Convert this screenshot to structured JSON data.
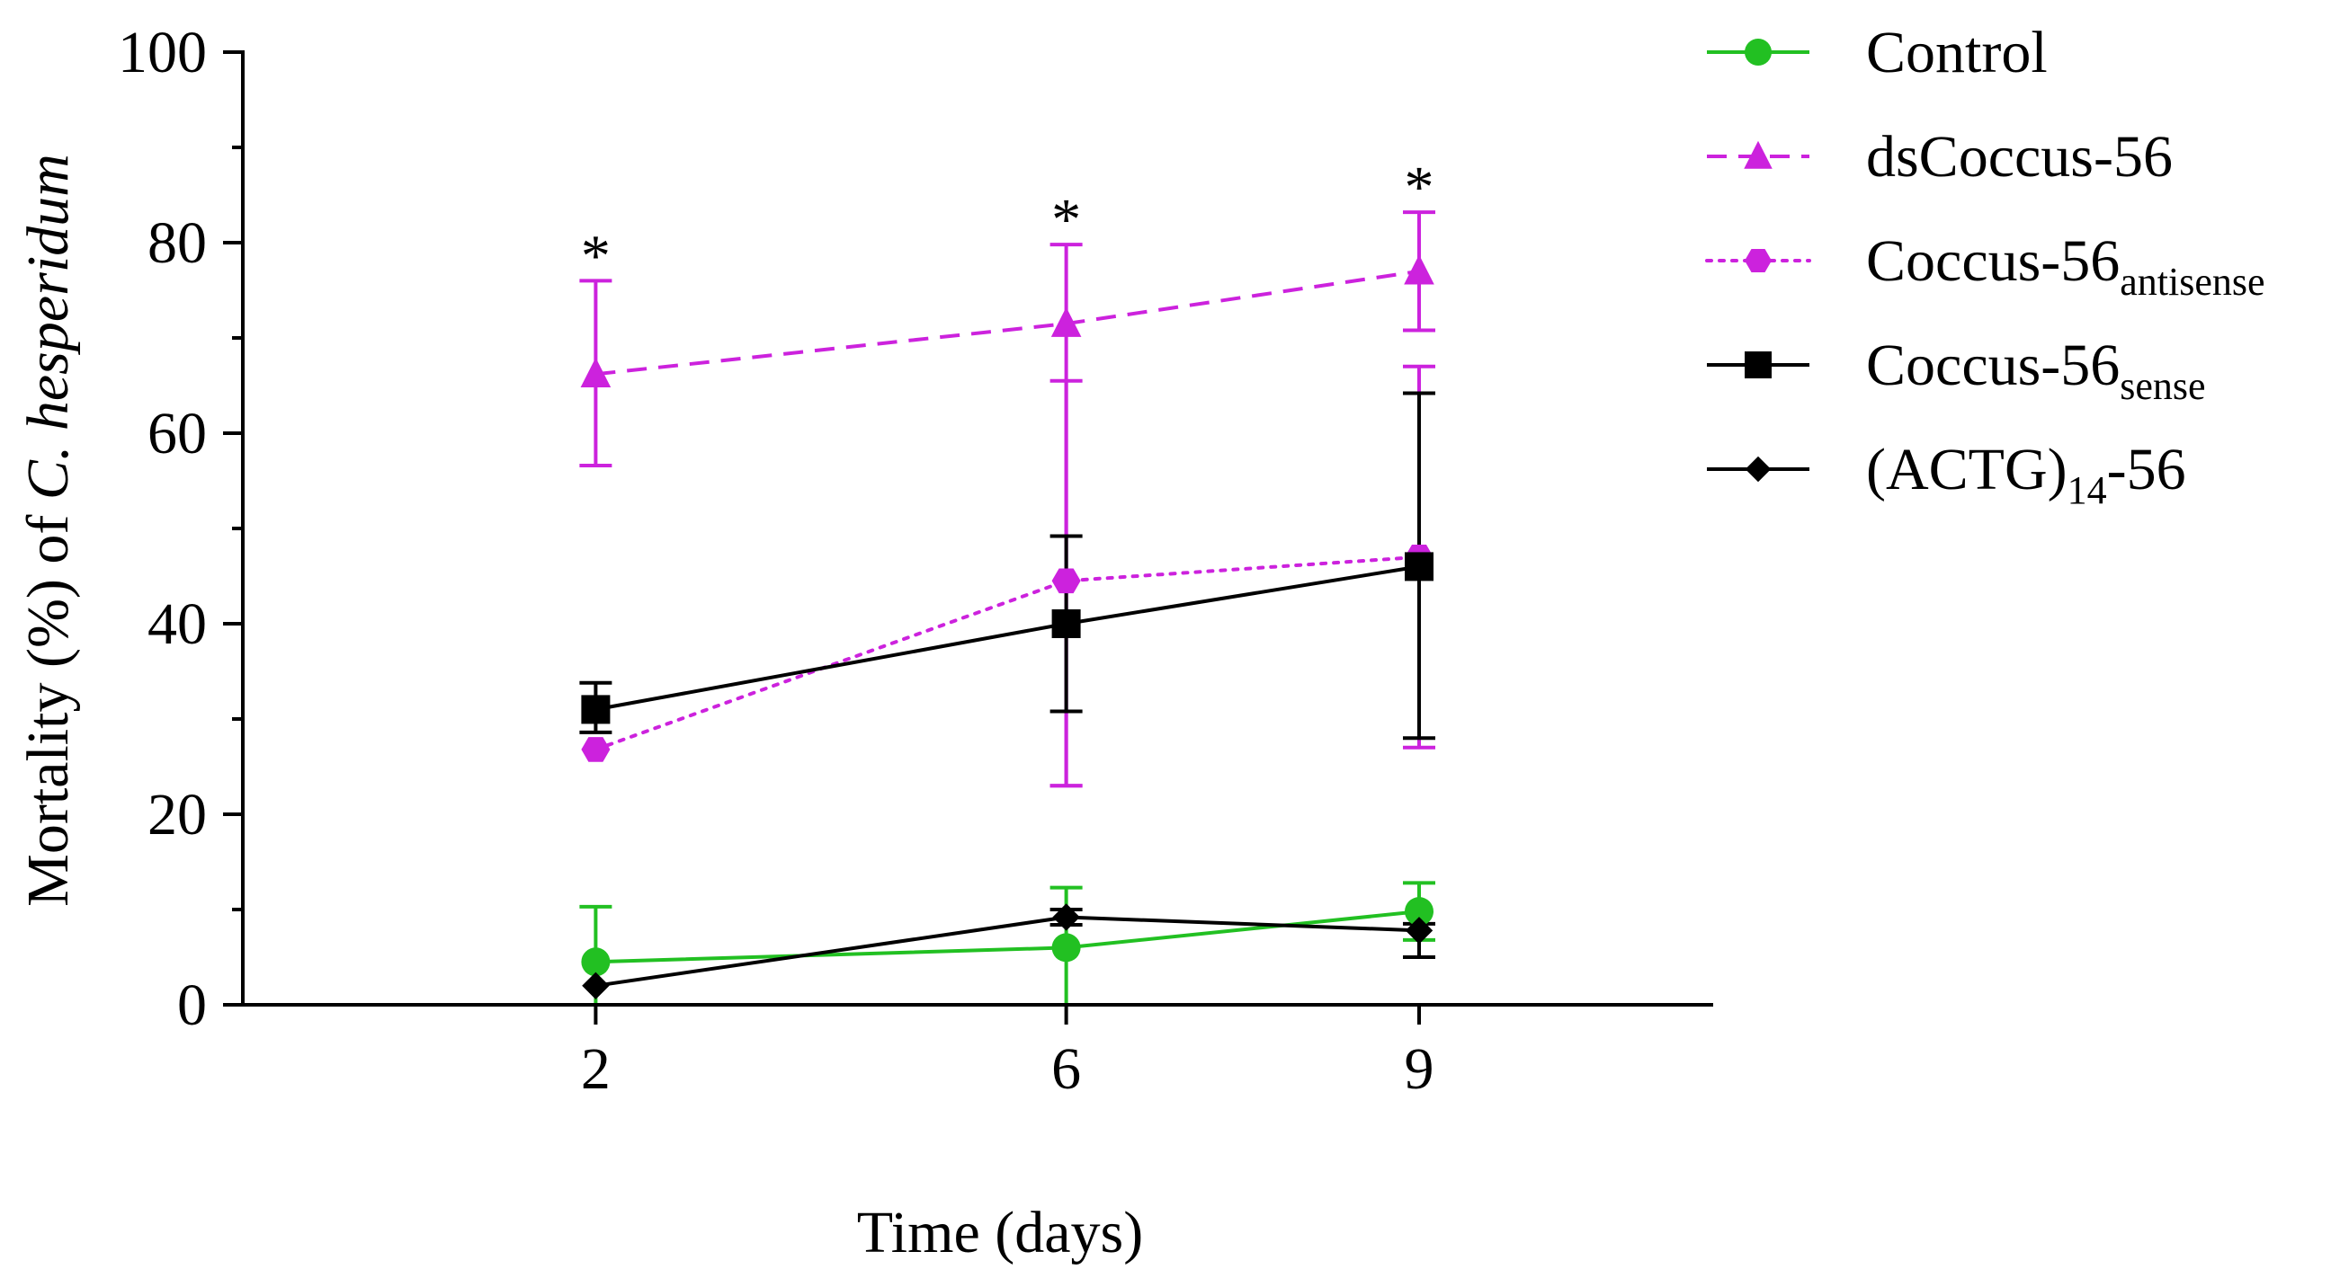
{
  "chart_data": {
    "type": "line",
    "title": "",
    "xlabel": "Time (days)",
    "ylabel_prefix": "Mortality (%) of ",
    "ylabel_species": "C. hesperidum",
    "x": [
      2,
      6,
      9
    ],
    "x_tick_labels": [
      "2",
      "6",
      "9"
    ],
    "ylim": [
      0,
      100
    ],
    "y_ticks": [
      0,
      20,
      40,
      60,
      80,
      100
    ],
    "y_tick_labels": [
      "0",
      "20",
      "40",
      "60",
      "80",
      "100"
    ],
    "xlim": [
      -1,
      11.5
    ],
    "significance": {
      "marker": "*",
      "x": [
        2,
        6,
        9
      ]
    },
    "legend_position": "top-right",
    "series": [
      {
        "name": "Control",
        "label_main": "Control",
        "label_sub": "",
        "label_suffix": "",
        "color": "#22c022",
        "dash": "solid",
        "marker": "circle",
        "values": [
          4.5,
          6,
          9.8
        ],
        "err_upper": [
          10.3,
          12.3,
          12.8
        ],
        "err_lower": [
          0,
          0,
          6.8
        ]
      },
      {
        "name": "dsCoccus-56",
        "label_main": "dsCoccus-56",
        "label_sub": "",
        "label_suffix": "",
        "color": "#cc22dd",
        "dash": "dashed",
        "marker": "triangle",
        "values": [
          66.2,
          71.5,
          77
        ],
        "err_upper": [
          76,
          79.8,
          83.2
        ],
        "err_lower": [
          56.6,
          23,
          70.8
        ]
      },
      {
        "name": "Coccus-56antisense",
        "label_main": "Coccus-56",
        "label_sub": "antisense",
        "label_suffix": "",
        "color": "#cc22dd",
        "dash": "dotted",
        "marker": "hexagon",
        "values": [
          26.8,
          44.5,
          47
        ],
        "err_upper": [
          26.8,
          65.5,
          67
        ],
        "err_lower": [
          26.8,
          23,
          27
        ]
      },
      {
        "name": "Coccus-56sense",
        "label_main": "Coccus-56",
        "label_sub": "sense",
        "label_suffix": "",
        "color": "#000000",
        "dash": "solid",
        "marker": "square",
        "values": [
          31,
          40,
          46
        ],
        "err_upper": [
          33.8,
          49.2,
          64.2
        ],
        "err_lower": [
          28.6,
          30.8,
          28
        ]
      },
      {
        "name": "(ACTG)14-56",
        "label_main": "(ACTG)",
        "label_sub": "14",
        "label_suffix": "-56",
        "color": "#000000",
        "dash": "solid",
        "marker": "diamond",
        "values": [
          2,
          9.2,
          7.8
        ],
        "err_upper": [
          2,
          10,
          8.5
        ],
        "err_lower": [
          2,
          8.4,
          5
        ]
      }
    ]
  }
}
